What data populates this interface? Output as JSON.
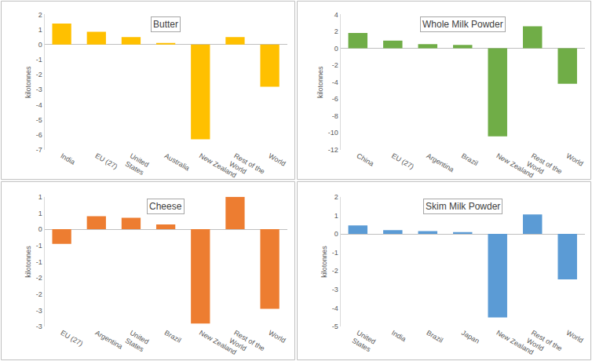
{
  "chart_data": [
    {
      "type": "bar",
      "title": "Butter",
      "ylabel": "kilotonnes",
      "categories": [
        "India",
        "EU (27)",
        "United States",
        "Australia",
        "New Zealand",
        "Rest of the World",
        "World"
      ],
      "values": [
        1.4,
        0.85,
        0.5,
        0.1,
        -6.3,
        0.5,
        -2.8
      ],
      "color": "#ffc000",
      "ylim": [
        -7,
        2
      ],
      "yticks": [
        -7,
        -6,
        -5,
        -4,
        -3,
        -2,
        -1,
        0,
        1,
        2
      ],
      "grid": false
    },
    {
      "type": "bar",
      "title": "Whole Milk Powder",
      "ylabel": "kilotonnes",
      "categories": [
        "China",
        "EU (27)",
        "Argentina",
        "Brazil",
        "New Zealand",
        "Rest of the World",
        "World"
      ],
      "values": [
        1.8,
        0.9,
        0.5,
        0.4,
        -10.4,
        2.6,
        -4.2
      ],
      "color": "#70ad47",
      "ylim": [
        -12,
        4
      ],
      "yticks": [
        -12,
        -10,
        -8,
        -6,
        -4,
        -2,
        0,
        2,
        4
      ],
      "grid": false
    },
    {
      "type": "bar",
      "title": "Cheese",
      "ylabel": "kilotonnes",
      "categories": [
        "EU (27)",
        "Argentina",
        "United States",
        "Brazil",
        "New Zealand",
        "Rest of the World",
        "World"
      ],
      "values": [
        -0.45,
        0.4,
        0.35,
        0.15,
        -2.9,
        1.0,
        -2.45
      ],
      "color": "#ed7d31",
      "ylim": [
        -3,
        1
      ],
      "yticks": [
        {
          "value": -3,
          "label": "-3"
        },
        {
          "value": -2.5,
          "label": "-3"
        },
        {
          "value": -2,
          "label": "-2"
        },
        {
          "value": -1.5,
          "label": "-2"
        },
        {
          "value": -1,
          "label": "-1"
        },
        {
          "value": -0.5,
          "label": "-1"
        },
        0,
        {
          "value": 0.5,
          "label": "1"
        },
        1
      ],
      "grid": false
    },
    {
      "type": "bar",
      "title": "Skim Milk Powder",
      "ylabel": "kilotonnes",
      "categories": [
        "United States",
        "India",
        "Brazil",
        "Japan",
        "New Zealand",
        "Rest of the World",
        "World"
      ],
      "values": [
        0.45,
        0.2,
        0.15,
        0.1,
        -4.5,
        1.05,
        -2.45
      ],
      "color": "#5b9bd5",
      "ylim": [
        -5,
        2
      ],
      "yticks": [
        -5,
        -4,
        -3,
        -2,
        -1,
        0,
        1,
        2
      ],
      "grid": false
    }
  ]
}
